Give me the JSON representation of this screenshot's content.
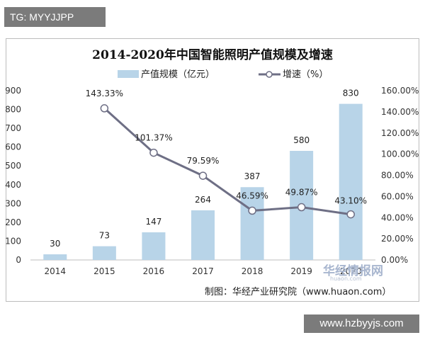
{
  "header_tag": "TG: MYYJJPP",
  "source_note": "制图：华经产业研究院（www.huaon.com）",
  "watermark": {
    "logo_text": "华经情报网",
    "logo_url": "huaon.com"
  },
  "bottom_banner": "www.hzbyyjs.com",
  "colors": {
    "bar": "#b8d4e8",
    "line": "#6e6f85",
    "axis_text": "#333333",
    "grid": "#d9d9d9"
  },
  "chart_data": {
    "type": "bar",
    "title": "2014-2020年中国智能照明产值规模及增速",
    "categories": [
      "2014",
      "2015",
      "2016",
      "2017",
      "2018",
      "2019",
      "2020"
    ],
    "series": [
      {
        "name": "产值规模（亿元）",
        "type": "bar",
        "axis": "left",
        "values": [
          30,
          73,
          147,
          264,
          387,
          580,
          830
        ],
        "labels": [
          "30",
          "73",
          "147",
          "264",
          "387",
          "580",
          "830"
        ]
      },
      {
        "name": "增速（%）",
        "type": "line",
        "axis": "right",
        "values": [
          null,
          143.33,
          101.37,
          79.59,
          46.59,
          49.87,
          43.1
        ],
        "labels": [
          "",
          "143.33%",
          "101.37%",
          "79.59%",
          "46.59%",
          "49.87%",
          "43.10%"
        ]
      }
    ],
    "ylim_left": [
      0,
      900
    ],
    "yticks_left": [
      "0",
      "100",
      "200",
      "300",
      "400",
      "500",
      "600",
      "700",
      "800",
      "900"
    ],
    "ylim_right": [
      0,
      160
    ],
    "yticks_right": [
      "0.00%",
      "20.00%",
      "40.00%",
      "60.00%",
      "80.00%",
      "100.00%",
      "120.00%",
      "140.00%",
      "160.00%"
    ],
    "legend_position": "top-center",
    "grid": false
  }
}
